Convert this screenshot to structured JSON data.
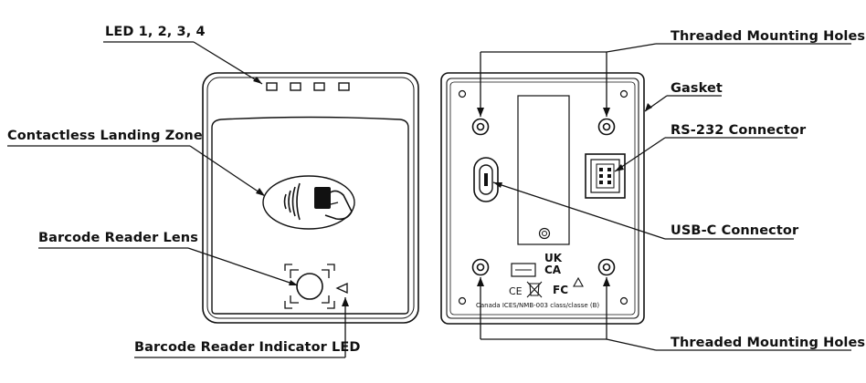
{
  "callouts": {
    "led": "LED 1, 2, 3, 4",
    "contactless": "Contactless Landing Zone",
    "barcode_lens": "Barcode Reader Lens",
    "barcode_led": "Barcode Reader Indicator LED",
    "threaded_top": "Threaded Mounting Holes",
    "gasket": "Gasket",
    "rs232": "RS-232 Connector",
    "usbc": "USB-C Connector",
    "threaded_bottom": "Threaded Mounting Holes"
  },
  "back_markings": {
    "ukca_top": "UK",
    "ukca_bottom": "CA",
    "compliance": "Canada ICES/NMB-003 class/classe (B)",
    "fc": "FC",
    "ce": "CE"
  }
}
